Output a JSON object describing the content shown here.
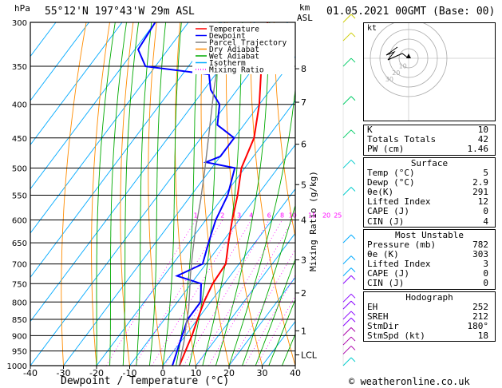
{
  "header": {
    "hpa_label": "hPa",
    "location": "55°12'N  197°43'W  29m  ASL",
    "km_label": "km",
    "asl_label": "ASL",
    "datetime": "01.05.2021  00GMT  (Base: 00)",
    "credit": "© weatheronline.co.uk"
  },
  "chart_data": {
    "type": "line",
    "title": "55°12'N  197°43'W  29m  ASL",
    "xlabel": "Dewpoint / Temperature (°C)",
    "ylabel": "hPa",
    "right_label": "Mixing Ratio (g/kg)",
    "xlim": [
      -40,
      40
    ],
    "x_ticks": [
      -40,
      -30,
      -20,
      -10,
      0,
      10,
      20,
      30,
      40
    ],
    "pressure_ticks": [
      300,
      350,
      400,
      450,
      500,
      550,
      600,
      650,
      700,
      750,
      800,
      850,
      900,
      950,
      1000
    ],
    "km_ticks": [
      {
        "label": "8",
        "p": 353
      },
      {
        "label": "7",
        "p": 397
      },
      {
        "label": "6",
        "p": 460
      },
      {
        "label": "5",
        "p": 530
      },
      {
        "label": "4",
        "p": 600
      },
      {
        "label": "3",
        "p": 690
      },
      {
        "label": "2",
        "p": 775
      },
      {
        "label": "1",
        "p": 885
      },
      {
        "label": "LCL",
        "p": 963
      }
    ],
    "mixing_ratio_labels": [
      "1",
      "2",
      "3",
      "4",
      "6",
      "8",
      "10",
      "15",
      "20",
      "25"
    ],
    "mixing_ratio_values": [
      1,
      2,
      3,
      4,
      6,
      8,
      10,
      15,
      20,
      25
    ],
    "legend": [
      {
        "name": "Temperature",
        "color": "#ff0000"
      },
      {
        "name": "Dewpoint",
        "color": "#0000ff"
      },
      {
        "name": "Parcel Trajectory",
        "color": "#808080"
      },
      {
        "name": "Dry Adiabat",
        "color": "#ff8c00"
      },
      {
        "name": "Wet Adiabat",
        "color": "#00aa00"
      },
      {
        "name": "Isotherm",
        "color": "#00aaff"
      },
      {
        "name": "Mixing Ratio",
        "color": "#ff00ff"
      }
    ],
    "series": [
      {
        "name": "Temperature",
        "color": "#ff0000",
        "points": [
          [
            5,
            1000
          ],
          [
            3.5,
            950
          ],
          [
            2,
            900
          ],
          [
            0,
            850
          ],
          [
            -2,
            800
          ],
          [
            -3.5,
            750
          ],
          [
            -4,
            700
          ],
          [
            -8,
            650
          ],
          [
            -12,
            600
          ],
          [
            -16,
            550
          ],
          [
            -21,
            500
          ],
          [
            -24,
            450
          ],
          [
            -30,
            400
          ],
          [
            -38,
            350
          ],
          [
            -40,
            340
          ],
          [
            -45,
            320
          ],
          [
            -46,
            300
          ]
        ]
      },
      {
        "name": "Dewpoint",
        "color": "#0000ff",
        "points": [
          [
            2.9,
            1000
          ],
          [
            1,
            950
          ],
          [
            -1,
            900
          ],
          [
            -3,
            850
          ],
          [
            -3,
            800
          ],
          [
            -7,
            750
          ],
          [
            -16,
            730
          ],
          [
            -11,
            700
          ],
          [
            -14,
            650
          ],
          [
            -17,
            600
          ],
          [
            -19,
            550
          ],
          [
            -23,
            500
          ],
          [
            -33,
            490
          ],
          [
            -30,
            480
          ],
          [
            -30,
            450
          ],
          [
            -38,
            430
          ],
          [
            -42,
            400
          ],
          [
            -48,
            380
          ],
          [
            -52,
            360
          ],
          [
            -73,
            350
          ],
          [
            -79,
            330
          ],
          [
            -80,
            300
          ]
        ]
      },
      {
        "name": "Parcel Trajectory",
        "color": "#808080",
        "points": [
          [
            5,
            1000
          ],
          [
            3,
            960
          ],
          [
            1,
            920
          ],
          [
            -2,
            870
          ],
          [
            -5,
            820
          ],
          [
            -8,
            780
          ],
          [
            -12,
            730
          ],
          [
            -16,
            680
          ],
          [
            -21,
            620
          ],
          [
            -26,
            560
          ],
          [
            -32,
            500
          ],
          [
            -39,
            440
          ],
          [
            -47,
            380
          ],
          [
            -56,
            320
          ],
          [
            -59,
            300
          ]
        ]
      }
    ],
    "grid": true
  },
  "hodograph": {
    "label": "kt",
    "rings": [
      "10",
      "20",
      "30",
      "40"
    ],
    "ring_labels": [
      "10",
      "20",
      "30"
    ]
  },
  "indices": {
    "top": [
      {
        "k": "K",
        "v": "10"
      },
      {
        "k": "Totals Totals",
        "v": "42"
      },
      {
        "k": "PW (cm)",
        "v": "1.46"
      }
    ],
    "surface": {
      "title": "Surface",
      "rows": [
        {
          "k": "Temp (°C)",
          "v": "5"
        },
        {
          "k": "Dewp (°C)",
          "v": "2.9"
        },
        {
          "k": "θe(K)",
          "v": "291"
        },
        {
          "k": "Lifted Index",
          "v": "12"
        },
        {
          "k": "CAPE (J)",
          "v": "0"
        },
        {
          "k": "CIN (J)",
          "v": "4"
        }
      ]
    },
    "unstable": {
      "title": "Most Unstable",
      "rows": [
        {
          "k": "Pressure (mb)",
          "v": "782"
        },
        {
          "k": "θe (K)",
          "v": "303"
        },
        {
          "k": "Lifted Index",
          "v": "3"
        },
        {
          "k": "CAPE (J)",
          "v": "0"
        },
        {
          "k": "CIN (J)",
          "v": "0"
        }
      ]
    },
    "hodo": {
      "title": "Hodograph",
      "rows": [
        {
          "k": "EH",
          "v": "252"
        },
        {
          "k": "SREH",
          "v": "212"
        },
        {
          "k": "StmDir",
          "v": "180°"
        },
        {
          "k": "StmSpd (kt)",
          "v": "18"
        }
      ]
    }
  }
}
